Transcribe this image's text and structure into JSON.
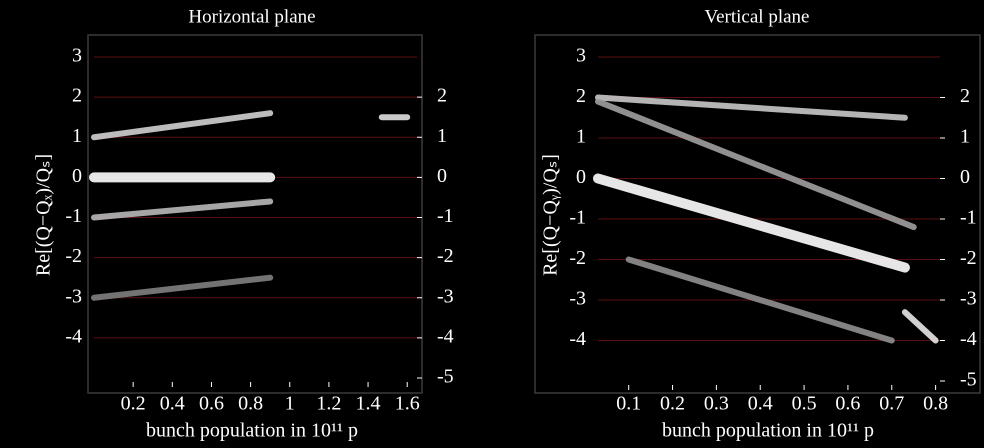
{
  "chart_data": [
    {
      "type": "line",
      "title": "Horizontal plane",
      "xlabel": "bunch population in 10¹¹ p",
      "ylabel": "Re[(Q−Qₓ)/Qₛ]",
      "xlim": [
        0,
        1.65
      ],
      "xticks": [
        0.2,
        0.4,
        0.6,
        0.8,
        1,
        1.2,
        1.4,
        1.6
      ],
      "ylim": [
        -5,
        3
      ],
      "yticks": [
        3,
        2,
        1,
        0,
        -1,
        -2,
        -3,
        -4
      ],
      "y2lim": [
        -5,
        3
      ],
      "y2ticks": [
        2,
        1,
        0,
        -1,
        -2,
        -3,
        -4,
        -5
      ],
      "grid": true,
      "grid_color": "#5a1010",
      "series": [
        {
          "color": "#ffffff",
          "x": [
            0,
            0.9
          ],
          "values": [
            0,
            0
          ]
        },
        {
          "color": "#d0d0d0",
          "x": [
            0,
            0.9
          ],
          "values": [
            1,
            1.6
          ]
        },
        {
          "color": "#b8b8b8",
          "x": [
            0,
            0.9
          ],
          "values": [
            -1,
            -0.6
          ]
        },
        {
          "color": "#808080",
          "x": [
            0,
            0.9
          ],
          "values": [
            -3,
            -2.5
          ]
        },
        {
          "color": "#e0e0e0",
          "x": [
            1.47,
            1.6
          ],
          "values": [
            1.5,
            1.5
          ]
        }
      ]
    },
    {
      "type": "line",
      "title": "Vertical plane",
      "xlabel": "bunch population in 10¹¹ p",
      "ylabel": "Re[(Q−Qᵧ)/Qₛ]",
      "xlim": [
        0.03,
        0.81
      ],
      "xticks": [
        0.1,
        0.2,
        0.3,
        0.4,
        0.5,
        0.6,
        0.7,
        0.8
      ],
      "ylim": [
        -5,
        3
      ],
      "yticks": [
        3,
        2,
        1,
        0,
        -1,
        -2,
        -3,
        -4
      ],
      "y2lim": [
        -5,
        3
      ],
      "y2ticks": [
        2,
        1,
        0,
        -1,
        -2,
        -3,
        -4,
        -5
      ],
      "grid": true,
      "grid_color": "#5a1010",
      "series": [
        {
          "color": "#ffffff",
          "x": [
            0.03,
            0.73
          ],
          "values": [
            0,
            -2.2
          ]
        },
        {
          "color": "#c8c8c8",
          "x": [
            0.03,
            0.73
          ],
          "values": [
            2,
            1.5
          ]
        },
        {
          "color": "#a0a0a0",
          "x": [
            0.03,
            0.75
          ],
          "values": [
            1.9,
            -1.2
          ]
        },
        {
          "color": "#909090",
          "x": [
            0.1,
            0.7
          ],
          "values": [
            -2,
            -4
          ]
        },
        {
          "color": "#e8e8e8",
          "x": [
            0.73,
            0.8
          ],
          "values": [
            -3.3,
            -4
          ]
        }
      ]
    }
  ]
}
